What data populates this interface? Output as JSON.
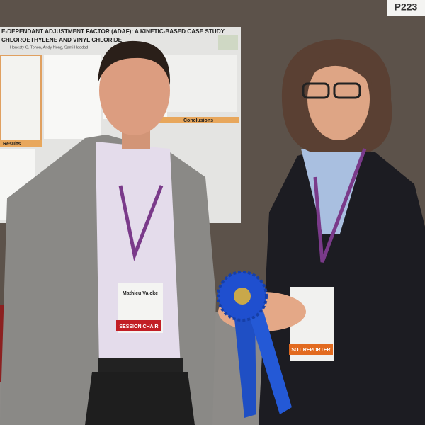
{
  "sign": "P223",
  "poster": {
    "title_line1": "E-DEPENDANT ADJUSTMENT FACTOR (ADAF): A KINETIC-BASED CASE STUDY",
    "title_line2": "CHLOROETHYLENE AND VINYL CHLORIDE",
    "authors": "Honesty G. Tohon, Andy Nong, Sami Haddad",
    "sections": [
      "Conclusions",
      "Results"
    ]
  },
  "badges": [
    {
      "name": "Mathieu Valcke",
      "role": "SESSION CHAIR"
    },
    {
      "role": "SOT REPORTER"
    }
  ]
}
